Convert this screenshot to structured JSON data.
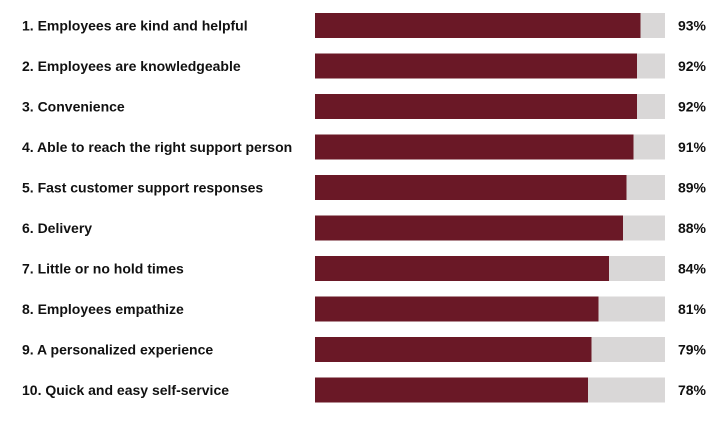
{
  "chart_data": {
    "type": "bar",
    "orientation": "horizontal",
    "categories": [
      "1.  Employees are kind and helpful",
      "2.  Employees are knowledgeable",
      "3.  Convenience",
      "4.  Able to reach the right support person",
      "5.  Fast customer support responses",
      "6.  Delivery",
      "7.  Little or no hold times",
      "8.  Employees empathize",
      "9.  A personalized experience",
      "10. Quick and easy self-service"
    ],
    "values": [
      93,
      92,
      92,
      91,
      89,
      88,
      84,
      81,
      79,
      78
    ],
    "value_labels": [
      "93%",
      "92%",
      "92%",
      "91%",
      "89%",
      "88%",
      "84%",
      "81%",
      "79%",
      "78%"
    ],
    "xlim": [
      0,
      100
    ],
    "grid": false,
    "legend": "none",
    "colors": {
      "bar": "#6a1826",
      "track": "#d9d7d7"
    }
  }
}
